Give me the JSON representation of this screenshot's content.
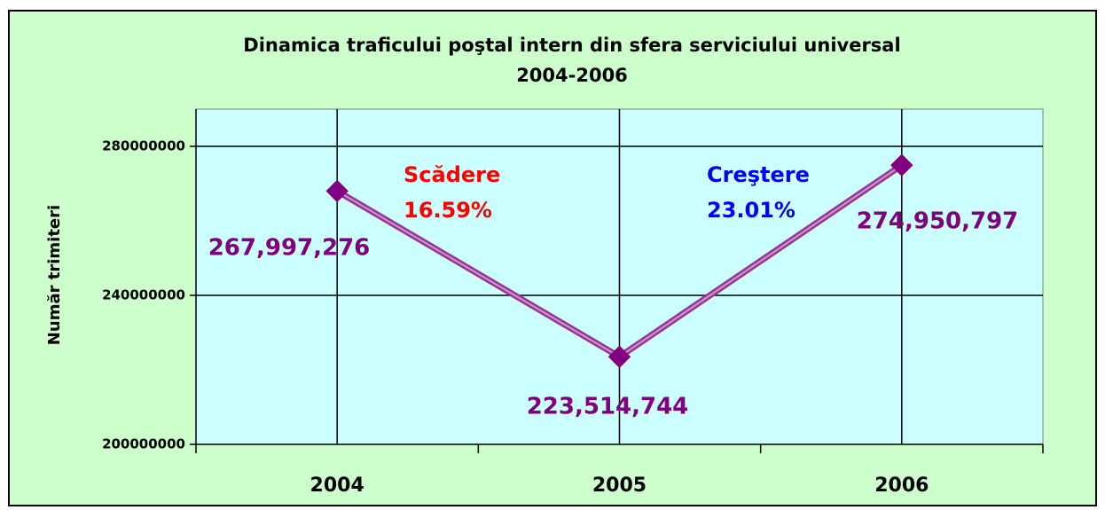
{
  "chart_data": {
    "type": "line",
    "title": "Dinamica traficului poştal intern din sfera serviciului universal",
    "subtitle": "2004-2006",
    "y_label": "Număr trimiteri",
    "categories": [
      "2004",
      "2005",
      "2006"
    ],
    "series": [
      {
        "name": "Număr trimiteri",
        "color": "#993399",
        "marker_color": "#800080",
        "values": [
          267997276,
          223514744,
          274950797
        ],
        "value_labels": [
          "267,997,276",
          "223,514,744",
          "274,950,797"
        ]
      }
    ],
    "annotations": [
      {
        "lines": [
          "Scădere",
          "16.59%"
        ],
        "color": "#ff0000"
      },
      {
        "lines": [
          "Creştere",
          "23.01%"
        ],
        "color": "#0000ff"
      }
    ],
    "ylim": [
      200000000,
      290000000
    ],
    "yticks": [
      200000000,
      240000000,
      280000000
    ],
    "grid": true
  }
}
